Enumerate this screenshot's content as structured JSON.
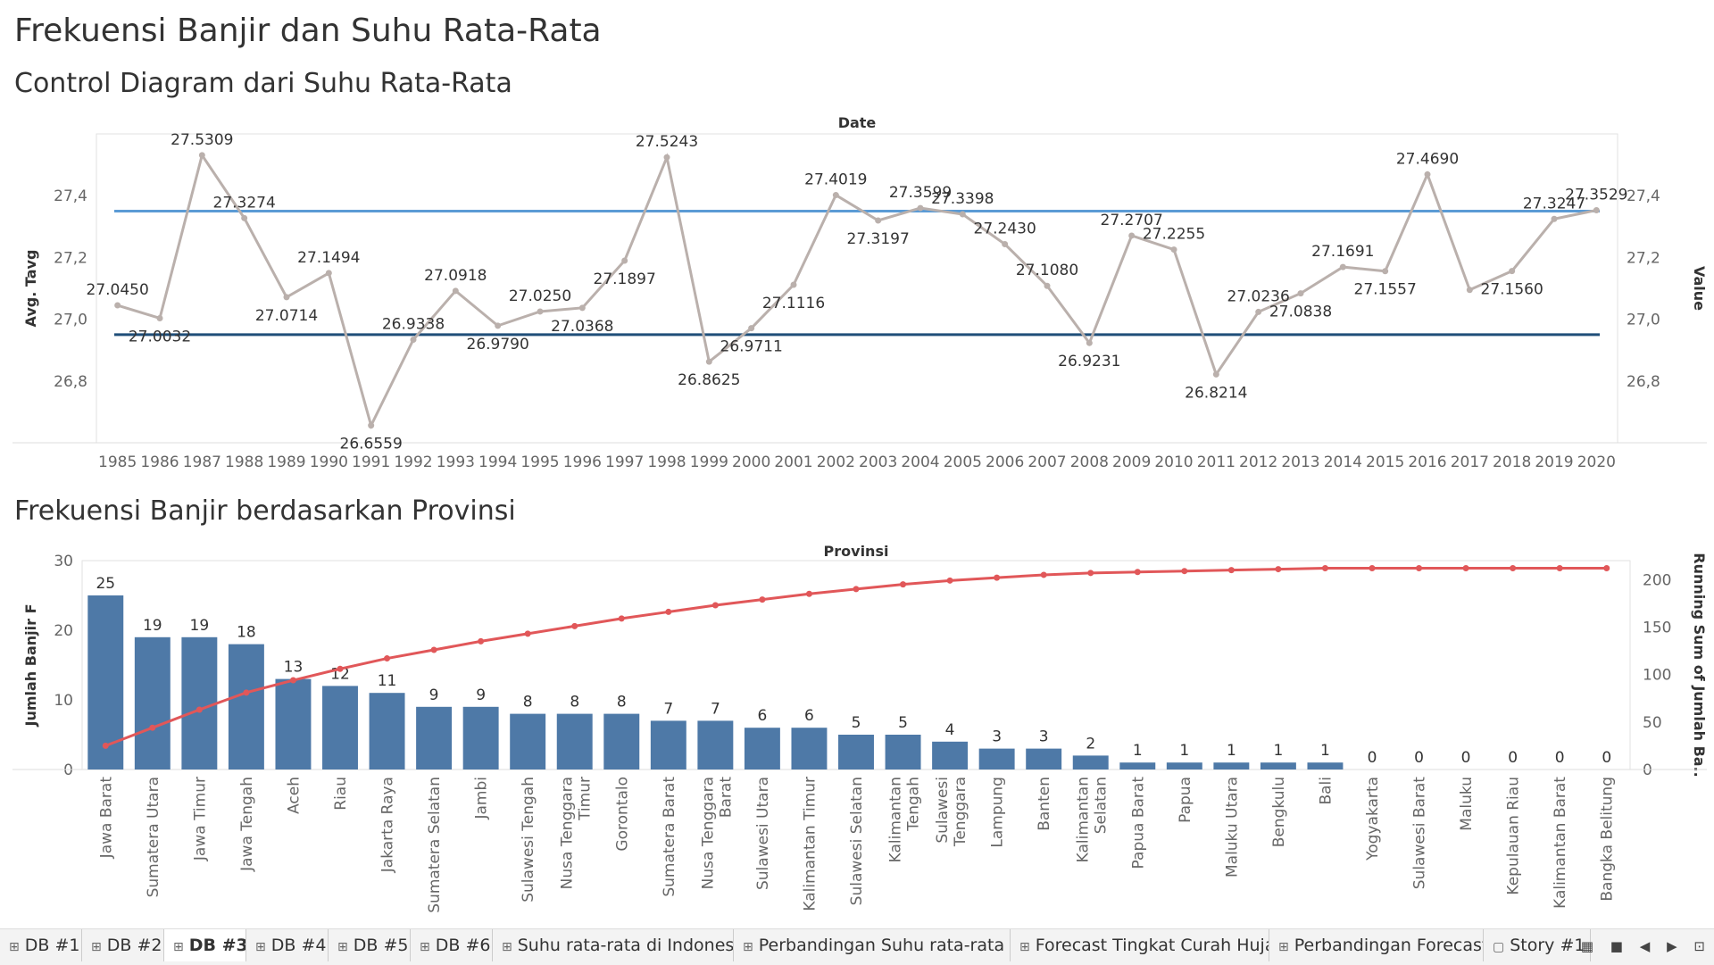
{
  "dashboard_title": "Frekuensi Banjir dan Suhu Rata-Rata",
  "control_chart_title": "Control Diagram dari Suhu Rata-Rata",
  "pareto_chart_title": "Frekuensi Banjir berdasarkan Provinsi",
  "chart_data": [
    {
      "type": "line",
      "xlabel": "Date",
      "ylabel": "Avg. Tavg",
      "y2label": "Value",
      "ylim": [
        26.6,
        27.6
      ],
      "yticks": [
        "26,8",
        "27,0",
        "27,2",
        "27,4"
      ],
      "x": [
        "1985",
        "1986",
        "1987",
        "1988",
        "1989",
        "1990",
        "1991",
        "1992",
        "1993",
        "1994",
        "1995",
        "1996",
        "1997",
        "1998",
        "1999",
        "2000",
        "2001",
        "2002",
        "2003",
        "2004",
        "2005",
        "2006",
        "2007",
        "2008",
        "2009",
        "2010",
        "2011",
        "2012",
        "2013",
        "2014",
        "2015",
        "2016",
        "2017",
        "2018",
        "2019",
        "2020"
      ],
      "series": [
        {
          "values": [
            27.045,
            27.0032,
            27.5309,
            27.3274,
            27.0714,
            27.1494,
            26.6559,
            26.9338,
            27.0918,
            26.979,
            27.025,
            27.0368,
            27.1897,
            27.5243,
            26.8625,
            26.9711,
            27.1116,
            27.4019,
            27.3197,
            27.3599,
            27.3398,
            27.243,
            27.108,
            26.9231,
            27.2707,
            27.2255,
            26.8214,
            27.0236,
            27.0838,
            27.1691,
            27.1557,
            27.469,
            27.095,
            27.156,
            27.3247,
            27.3529
          ],
          "labels": [
            "27.0450",
            "27.0032",
            "27.5309",
            "27.3274",
            "27.0714",
            "27.1494",
            "26.6559",
            "26.9338",
            "27.0918",
            "26.9790",
            "27.0250",
            "27.0368",
            "27.1897",
            "27.5243",
            "26.8625",
            "26.9711",
            "27.1116",
            "27.4019",
            "27.3197",
            "27.3599",
            "27.3398",
            "27.2430",
            "27.1080",
            "26.9231",
            "27.2707",
            "27.2255",
            "26.8214",
            "27.0236",
            "27.0838",
            "27.1691",
            "27.1557",
            "27.4690",
            "",
            "27.1560",
            "27.3247",
            "27.3529"
          ]
        }
      ],
      "reference_lines": [
        27.35,
        26.95
      ],
      "colors": {
        "line": "#bab0ac",
        "upper": "#5b9bd5",
        "lower": "#1f4e79"
      }
    },
    {
      "type": "bar",
      "xlabel": "Provinsi",
      "ylabel": "Jumlah Banjir F",
      "y2label": "Running Sum of Jumlah Ba..",
      "ylim": [
        0,
        30
      ],
      "y2lim": [
        0,
        220
      ],
      "yticks": [
        "0",
        "10",
        "20",
        "30"
      ],
      "y2ticks": [
        "0",
        "50",
        "100",
        "150",
        "200"
      ],
      "categories": [
        "Jawa Barat",
        "Sumatera Utara",
        "Jawa Timur",
        "Jawa Tengah",
        "Aceh",
        "Riau",
        "Jakarta Raya",
        "Sumatera Selatan",
        "Jambi",
        "Sulawesi Tengah",
        "Nusa Tenggara Timur",
        "Gorontalo",
        "Sumatera Barat",
        "Nusa Tenggara Barat",
        "Sulawesi Utara",
        "Kalimantan Timur",
        "Sulawesi Selatan",
        "Kalimantan Tengah",
        "Sulawesi Tenggara",
        "Lampung",
        "Banten",
        "Kalimantan Selatan",
        "Papua Barat",
        "Papua",
        "Maluku Utara",
        "Bengkulu",
        "Bali",
        "Yogyakarta",
        "Sulawesi Barat",
        "Maluku",
        "Kepulauan Riau",
        "Kalimantan Barat",
        "Bangka Belitung"
      ],
      "values": [
        25,
        19,
        19,
        18,
        13,
        12,
        11,
        9,
        9,
        8,
        8,
        8,
        7,
        7,
        6,
        6,
        5,
        5,
        4,
        3,
        3,
        2,
        1,
        1,
        1,
        1,
        1,
        0,
        0,
        0,
        0,
        0,
        0
      ],
      "running_sum": [
        25,
        44,
        63,
        81,
        94,
        106,
        117,
        126,
        135,
        143,
        151,
        159,
        166,
        173,
        179,
        185,
        190,
        195,
        199,
        202,
        205,
        207,
        208,
        209,
        210,
        211,
        212,
        212,
        212,
        212,
        212,
        212,
        212
      ],
      "colors": {
        "bar": "#4e79a7",
        "line": "#e15759"
      }
    }
  ],
  "tabs": [
    {
      "label": "DB #1",
      "icon": "⊞",
      "color": "#2a9d8f",
      "active": false
    },
    {
      "label": "DB #2",
      "icon": "⊞",
      "color": "#2a9d8f",
      "active": false
    },
    {
      "label": "DB #3",
      "icon": "⊞",
      "color": "#2a9d8f",
      "active": true
    },
    {
      "label": "DB #4",
      "icon": "⊞",
      "color": "#2a9d8f",
      "active": false
    },
    {
      "label": "DB #5",
      "icon": "⊞",
      "color": "#2a9d8f",
      "active": false
    },
    {
      "label": "DB #6",
      "icon": "⊞",
      "color": "#2a9d8f",
      "active": false
    },
    {
      "label": "Suhu rata-rata di Indonesia",
      "icon": "⊞",
      "color": "#c0661b",
      "active": false
    },
    {
      "label": "Perbandingan Suhu rata-rata ...",
      "icon": "⊞",
      "color": "#c0661b",
      "active": false
    },
    {
      "label": "Forecast Tingkat Curah Hujan...",
      "icon": "⊞",
      "color": "#c0661b",
      "active": false
    },
    {
      "label": "Perbandingan Forecast",
      "icon": "⊞",
      "color": "#c0661b",
      "active": false
    },
    {
      "label": "Story #1",
      "icon": "▢",
      "color": "#6a4c93",
      "active": false
    }
  ]
}
